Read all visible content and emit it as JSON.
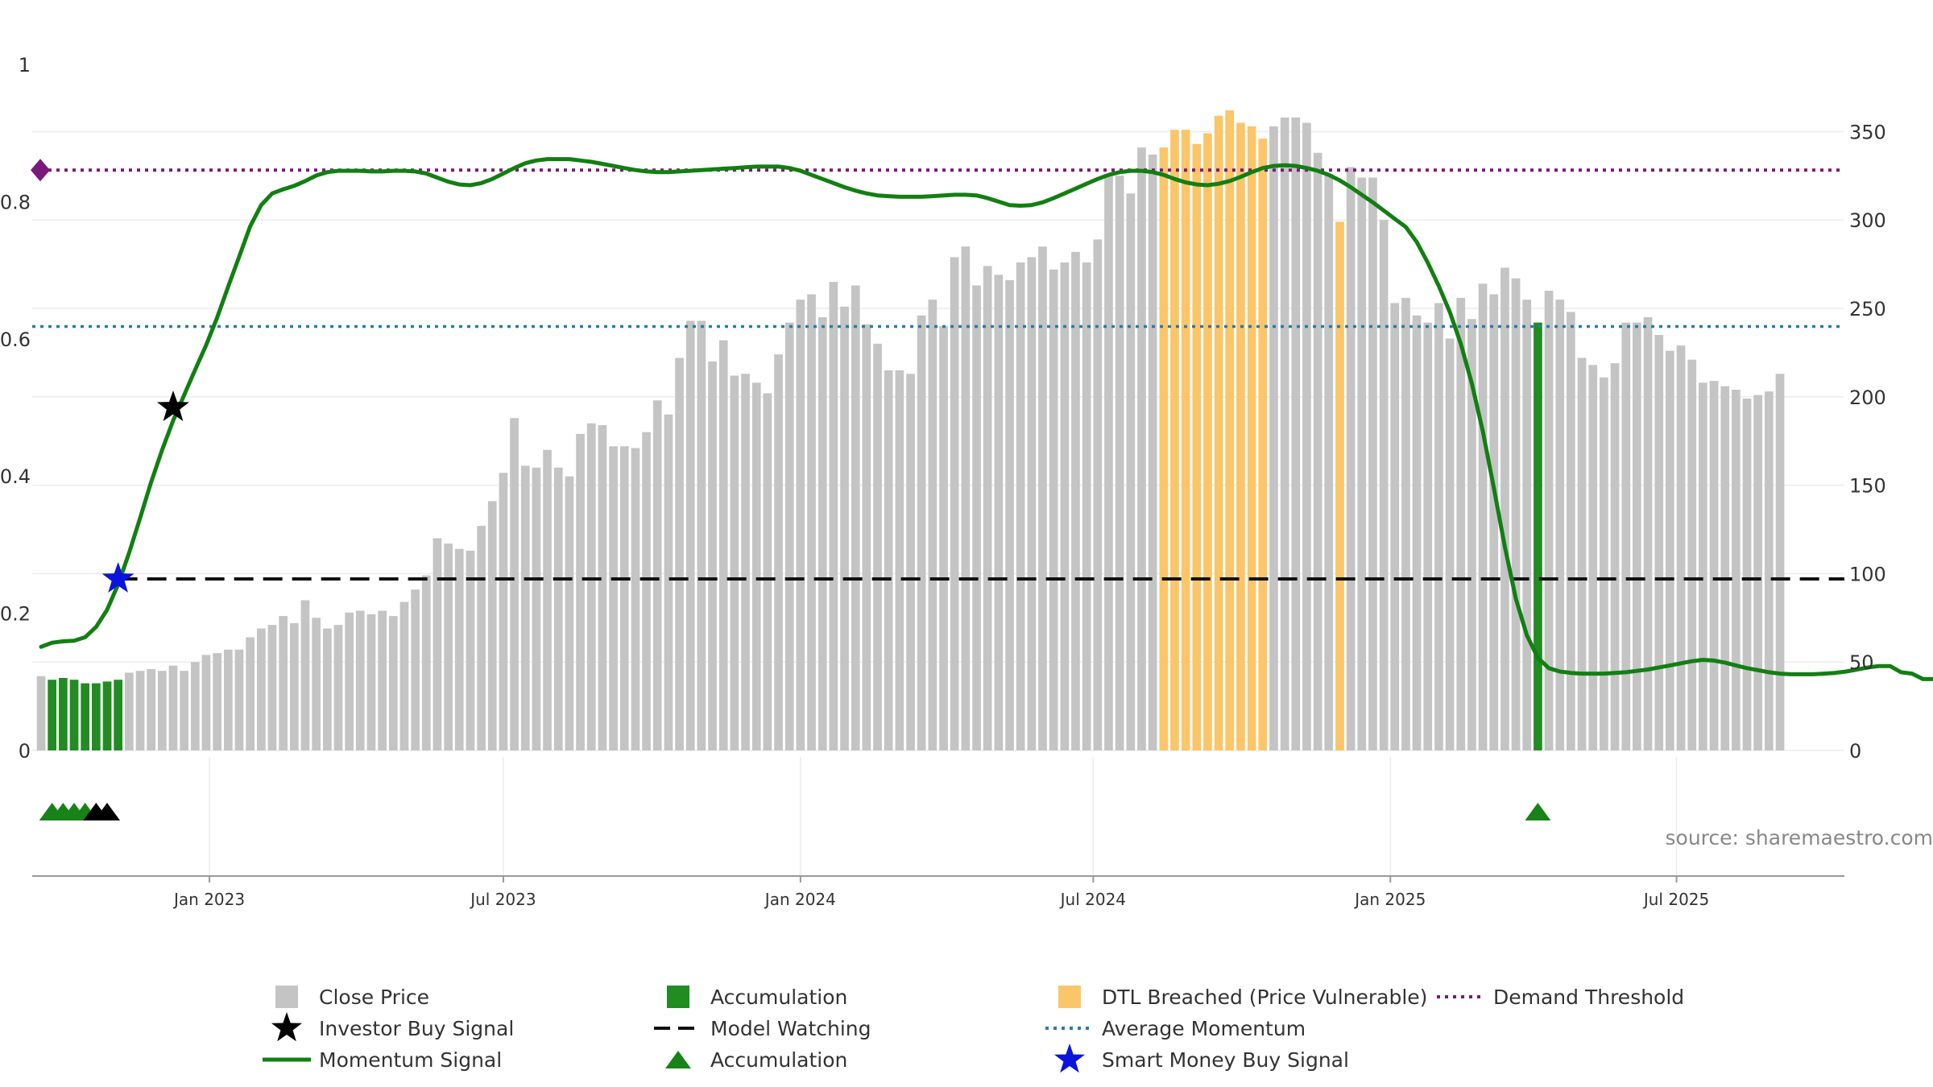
{
  "chart_data": {
    "type": "bar+line",
    "title": "",
    "source": "source: sharemaestro.com",
    "left_axis": {
      "label": "",
      "ticks": [
        "0",
        "0.2",
        "0.4",
        "0.6",
        "0.8",
        "1"
      ],
      "range": [
        0,
        1
      ]
    },
    "right_axis": {
      "label": "",
      "ticks": [
        "0",
        "50",
        "100",
        "150",
        "200",
        "250",
        "300",
        "350"
      ],
      "range": [
        0,
        388
      ]
    },
    "x_axis": {
      "range_weeks": [
        0,
        161
      ],
      "ticks": [
        {
          "label": "Jan 2023",
          "week": 15.3
        },
        {
          "label": "Jul 2023",
          "week": 42.0
        },
        {
          "label": "Jan 2024",
          "week": 69.0
        },
        {
          "label": "Jul 2024",
          "week": 95.6
        },
        {
          "label": "Jan 2025",
          "week": 122.6
        },
        {
          "label": "Jul 2025",
          "week": 148.6
        }
      ]
    },
    "close_price": [
      42,
      40,
      41,
      40,
      38,
      38,
      39,
      40,
      44,
      45,
      46,
      45,
      48,
      45,
      50,
      54,
      55,
      57,
      57,
      64,
      69,
      71,
      76,
      72,
      85,
      75,
      69,
      71,
      78,
      79,
      77,
      79,
      76,
      84,
      91,
      99,
      120,
      117,
      114,
      113,
      127,
      141,
      157,
      188,
      161,
      160,
      170,
      160,
      155,
      179,
      185,
      184,
      172,
      172,
      171,
      180,
      198,
      190,
      222,
      243,
      243,
      220,
      232,
      212,
      213,
      208,
      202,
      224,
      242,
      255,
      258,
      245,
      265,
      251,
      263,
      241,
      230,
      215,
      215,
      213,
      246,
      255,
      240,
      279,
      285,
      263,
      274,
      269,
      266,
      276,
      279,
      285,
      272,
      276,
      282,
      276,
      289,
      325,
      325,
      315,
      341,
      337,
      341,
      351,
      351,
      343,
      349,
      359,
      362,
      355,
      353,
      346,
      353,
      358,
      358,
      355,
      338,
      326,
      299,
      330,
      324,
      324,
      300,
      253,
      256,
      246,
      242,
      253,
      233,
      256,
      244,
      264,
      258,
      273,
      267,
      255,
      242,
      260,
      255,
      248,
      222,
      218,
      211,
      219,
      242,
      242,
      245,
      235,
      226,
      229,
      221,
      208,
      209,
      206,
      204,
      199,
      201,
      203,
      213
    ],
    "price_categories": {
      "accumulation_weeks": [
        1,
        2,
        3,
        4,
        5,
        6,
        7,
        136
      ],
      "dtl_breached_weeks": [
        102,
        103,
        104,
        105,
        106,
        107,
        108,
        109,
        110,
        111,
        118
      ]
    },
    "momentum_signal": [
      0.151,
      0.157,
      0.159,
      0.16,
      0.165,
      0.18,
      0.205,
      0.242,
      0.288,
      0.339,
      0.391,
      0.438,
      0.481,
      0.518,
      0.555,
      0.591,
      0.631,
      0.676,
      0.72,
      0.764,
      0.795,
      0.812,
      0.818,
      0.823,
      0.83,
      0.838,
      0.843,
      0.845,
      0.845,
      0.845,
      0.844,
      0.844,
      0.845,
      0.845,
      0.844,
      0.841,
      0.835,
      0.829,
      0.825,
      0.824,
      0.827,
      0.833,
      0.841,
      0.849,
      0.856,
      0.86,
      0.862,
      0.862,
      0.862,
      0.86,
      0.858,
      0.855,
      0.852,
      0.849,
      0.846,
      0.844,
      0.843,
      0.843,
      0.844,
      0.845,
      0.846,
      0.847,
      0.848,
      0.849,
      0.85,
      0.851,
      0.851,
      0.851,
      0.849,
      0.845,
      0.839,
      0.833,
      0.827,
      0.821,
      0.816,
      0.812,
      0.809,
      0.808,
      0.807,
      0.807,
      0.807,
      0.808,
      0.809,
      0.81,
      0.81,
      0.809,
      0.805,
      0.8,
      0.795,
      0.794,
      0.795,
      0.799,
      0.805,
      0.812,
      0.819,
      0.826,
      0.833,
      0.839,
      0.843,
      0.845,
      0.845,
      0.843,
      0.839,
      0.833,
      0.828,
      0.825,
      0.824,
      0.826,
      0.83,
      0.836,
      0.843,
      0.849,
      0.852,
      0.853,
      0.852,
      0.849,
      0.845,
      0.839,
      0.831,
      0.821,
      0.81,
      0.799,
      0.787,
      0.775,
      0.763,
      0.741,
      0.711,
      0.677,
      0.639,
      0.593,
      0.535,
      0.465,
      0.383,
      0.297,
      0.221,
      0.168,
      0.135,
      0.12,
      0.115,
      0.113,
      0.112,
      0.112,
      0.112,
      0.113,
      0.114,
      0.116,
      0.118,
      0.121,
      0.124,
      0.127,
      0.13,
      0.132,
      0.131,
      0.128,
      0.124,
      0.12,
      0.117,
      0.114,
      0.112,
      0.111,
      0.111,
      0.111,
      0.112,
      0.113,
      0.115,
      0.118,
      0.121,
      0.123,
      0.123,
      0.114,
      0.112,
      0.104,
      0.104,
      0.106
    ],
    "model_watching_level": 0.25,
    "model_watching_start_week": 7,
    "average_momentum": 0.618,
    "demand_threshold": 0.846,
    "markers": [
      {
        "type": "smart_money_buy_signal",
        "week": 7,
        "value": 0.25
      },
      {
        "type": "investor_buy_signal",
        "week": 12,
        "value": 0.5
      }
    ],
    "accumulation_triangles_weeks": [
      1,
      2,
      3,
      4,
      136
    ],
    "investor_triangles_weeks": [
      5,
      6
    ],
    "colors": {
      "close_price": "#c4c4c4",
      "accumulation": "#228b22",
      "dtl_breached": "#fbc56a",
      "momentum": "#127f12",
      "model_watching": "#111111",
      "average_momentum": "#2b7ba4",
      "demand_threshold": "#7a1a7a",
      "smart_money": "#0a14dc",
      "investor": "#000000",
      "triangle": "#178217"
    },
    "legend": [
      {
        "label": "Close Price",
        "key": "close_price",
        "symbol": "square"
      },
      {
        "label": "Investor Buy Signal",
        "key": "investor",
        "symbol": "star"
      },
      {
        "label": "Momentum Signal",
        "key": "momentum",
        "symbol": "line"
      },
      {
        "label": "Accumulation",
        "key": "accumulation",
        "symbol": "square"
      },
      {
        "label": "Model Watching",
        "key": "model_watching",
        "symbol": "dashed"
      },
      {
        "label": "Accumulation",
        "key": "triangle",
        "symbol": "triangle"
      },
      {
        "label": "DTL Breached (Price Vulnerable)",
        "key": "dtl_breached",
        "symbol": "square"
      },
      {
        "label": "Average Momentum",
        "key": "average_momentum",
        "symbol": "dotted"
      },
      {
        "label": "Smart Money Buy Signal",
        "key": "smart_money",
        "symbol": "star"
      },
      {
        "label": "Demand Threshold",
        "key": "demand_threshold",
        "symbol": "dotted"
      }
    ]
  }
}
